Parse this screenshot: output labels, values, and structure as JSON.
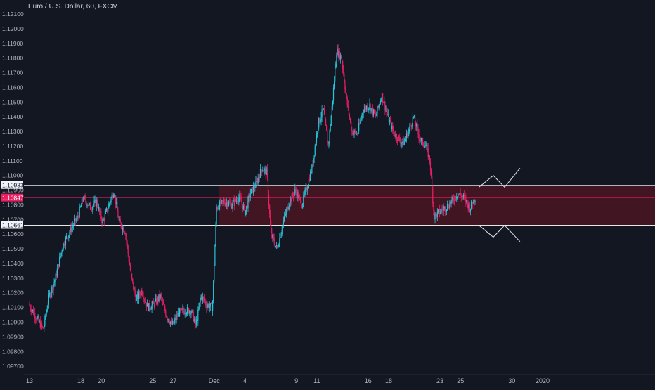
{
  "header": {
    "symbol_title": "Euro / U.S. Dollar, 60, FXCM"
  },
  "colors": {
    "background": "#131722",
    "axis_text": "#b2b5be",
    "up_candle": "#26c6da",
    "down_candle": "#e91e63",
    "zone_fill": "#4a1622",
    "level_line": "#e6e6e6",
    "price_line": "#e91e63",
    "projection": "#e6e6e6"
  },
  "chart_data": {
    "type": "candlestick",
    "title": "Euro / U.S. Dollar, 60, FXCM",
    "y_axis": {
      "ylim": [
        1.0965,
        1.1215
      ],
      "ticks": [
        "1.09700",
        "1.09800",
        "1.09900",
        "1.10000",
        "1.10100",
        "1.10200",
        "1.10300",
        "1.10400",
        "1.10500",
        "1.10600",
        "1.10700",
        "1.10800",
        "1.10900",
        "1.11000",
        "1.11100",
        "1.11200",
        "1.11300",
        "1.11400",
        "1.11500",
        "1.11600",
        "1.11700",
        "1.11800",
        "1.11900",
        "1.12000",
        "1.12100"
      ]
    },
    "x_axis": {
      "range": [
        0,
        58.5
      ],
      "ticks": [
        {
          "label": "13",
          "x": 0
        },
        {
          "label": "18",
          "x": 5
        },
        {
          "label": "20",
          "x": 7
        },
        {
          "label": "25",
          "x": 12
        },
        {
          "label": "27",
          "x": 14
        },
        {
          "label": "Dec",
          "x": 18
        },
        {
          "label": "4",
          "x": 21
        },
        {
          "label": "9",
          "x": 26
        },
        {
          "label": "11",
          "x": 28
        },
        {
          "label": "16",
          "x": 33
        },
        {
          "label": "18",
          "x": 35
        },
        {
          "label": "23",
          "x": 40
        },
        {
          "label": "25",
          "x": 42
        },
        {
          "label": "30",
          "x": 47
        },
        {
          "label": "2020",
          "x": 50
        }
      ]
    },
    "price_path": [
      [
        0,
        1.1012
      ],
      [
        0.6,
        1.1005
      ],
      [
        1.4,
        1.0995
      ],
      [
        2,
        1.1018
      ],
      [
        2.6,
        1.103
      ],
      [
        3.3,
        1.1052
      ],
      [
        4,
        1.1062
      ],
      [
        4.8,
        1.1072
      ],
      [
        5.3,
        1.1085
      ],
      [
        6,
        1.1078
      ],
      [
        6.6,
        1.1082
      ],
      [
        7.2,
        1.1068
      ],
      [
        7.8,
        1.108
      ],
      [
        8.3,
        1.109
      ],
      [
        8.8,
        1.1068
      ],
      [
        9.4,
        1.1062
      ],
      [
        10,
        1.103
      ],
      [
        10.5,
        1.1015
      ],
      [
        11,
        1.1022
      ],
      [
        11.6,
        1.101
      ],
      [
        12.2,
        1.1012
      ],
      [
        12.8,
        1.1018
      ],
      [
        13.4,
        1.1005
      ],
      [
        14,
        1.0998
      ],
      [
        14.6,
        1.1006
      ],
      [
        15.2,
        1.1008
      ],
      [
        15.8,
        1.1008
      ],
      [
        16.3,
        1.0998
      ],
      [
        16.8,
        1.1018
      ],
      [
        17.3,
        1.1012
      ],
      [
        17.9,
        1.101
      ],
      [
        18.3,
        1.1078
      ],
      [
        19,
        1.1082
      ],
      [
        19.8,
        1.108
      ],
      [
        20.5,
        1.1085
      ],
      [
        21.1,
        1.1075
      ],
      [
        21.6,
        1.1088
      ],
      [
        22.2,
        1.1095
      ],
      [
        22.7,
        1.1105
      ],
      [
        23.2,
        1.1102
      ],
      [
        23.6,
        1.106
      ],
      [
        24.2,
        1.105
      ],
      [
        24.8,
        1.1068
      ],
      [
        25.4,
        1.1082
      ],
      [
        26,
        1.109
      ],
      [
        26.6,
        1.108
      ],
      [
        27.1,
        1.1092
      ],
      [
        27.6,
        1.1105
      ],
      [
        28.2,
        1.1135
      ],
      [
        28.7,
        1.1145
      ],
      [
        29.2,
        1.112
      ],
      [
        29.6,
        1.115
      ],
      [
        30,
        1.1185
      ],
      [
        30.5,
        1.118
      ],
      [
        31,
        1.115
      ],
      [
        31.5,
        1.113
      ],
      [
        32,
        1.1128
      ],
      [
        32.6,
        1.1145
      ],
      [
        33.2,
        1.1148
      ],
      [
        33.8,
        1.114
      ],
      [
        34.4,
        1.1155
      ],
      [
        35,
        1.114
      ],
      [
        35.5,
        1.113
      ],
      [
        36,
        1.1125
      ],
      [
        36.5,
        1.1122
      ],
      [
        37,
        1.113
      ],
      [
        37.5,
        1.114
      ],
      [
        38.1,
        1.1125
      ],
      [
        38.7,
        1.112
      ],
      [
        39.1,
        1.111
      ],
      [
        39.5,
        1.1072
      ],
      [
        40,
        1.1075
      ],
      [
        40.6,
        1.1078
      ],
      [
        41.2,
        1.1082
      ],
      [
        41.8,
        1.1088
      ],
      [
        42.4,
        1.1085
      ],
      [
        43,
        1.1078
      ],
      [
        43.5,
        1.1085
      ]
    ],
    "levels": [
      {
        "label": "1.10933",
        "value": 1.10933
      },
      {
        "label": "1.10661",
        "value": 1.10661
      }
    ],
    "current_price": {
      "label": "1.10847",
      "value": 1.10847
    },
    "zone": {
      "from_x": 18.5,
      "to_x": 58.5,
      "top": 1.10933,
      "bottom": 1.10661
    },
    "projection_up": [
      [
        43.8,
        1.1092
      ],
      [
        45.2,
        1.11
      ],
      [
        46.3,
        1.1092
      ],
      [
        47.8,
        1.1105
      ]
    ],
    "projection_down": [
      [
        43.8,
        1.1066
      ],
      [
        45.2,
        1.1058
      ],
      [
        46.3,
        1.1066
      ],
      [
        47.8,
        1.1055
      ]
    ]
  }
}
